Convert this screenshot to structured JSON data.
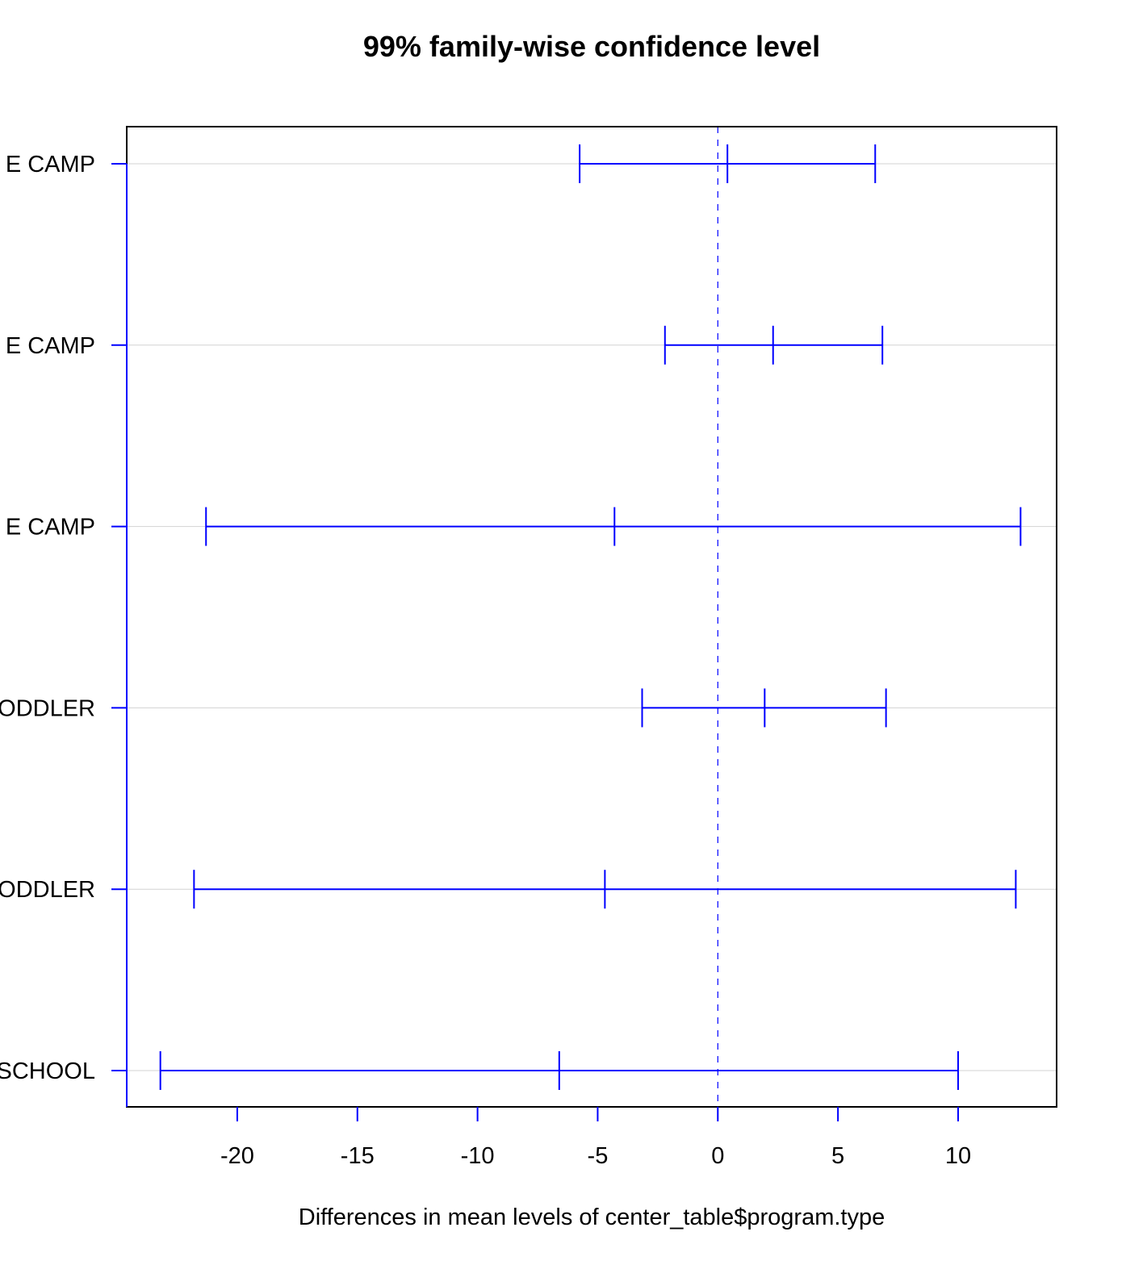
{
  "chart_data": {
    "type": "errorbar",
    "title": "99% family-wise confidence level",
    "xlabel": "Differences in mean levels of center_table$program.type",
    "ylabel": "",
    "xlim": [
      -24.6,
      14.1
    ],
    "xticks": [
      -20,
      -15,
      -10,
      -5,
      0,
      5,
      10
    ],
    "xtick_labels": [
      "-20",
      "-15",
      "-10",
      "-5",
      "0",
      "5",
      "10"
    ],
    "grid": "horizontal",
    "reference_line": 0,
    "colors": {
      "interval": "#0000ff",
      "grid": "#d3d3d3",
      "frame": "#000000"
    },
    "intervals": [
      {
        "label": "E CAMP",
        "lwr": -5.75,
        "diff": 0.4,
        "upr": 6.55
      },
      {
        "label": "E CAMP",
        "lwr": -2.2,
        "diff": 2.3,
        "upr": 6.85
      },
      {
        "label": "E CAMP",
        "lwr": -21.3,
        "diff": -4.3,
        "upr": 12.6
      },
      {
        "label": "ODDLER",
        "lwr": -3.15,
        "diff": 1.95,
        "upr": 7.0
      },
      {
        "label": "ODDLER",
        "lwr": -21.8,
        "diff": -4.7,
        "upr": 12.4
      },
      {
        "label": "SCHOOL",
        "lwr": -23.2,
        "diff": -6.6,
        "upr": 10.0
      }
    ]
  }
}
